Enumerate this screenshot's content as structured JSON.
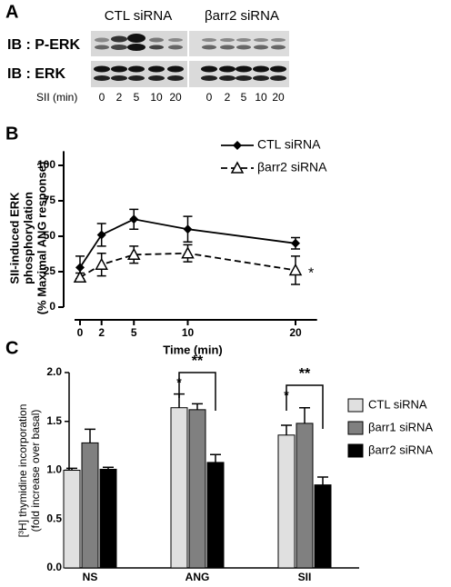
{
  "panel_labels": [
    "A",
    "B",
    "C"
  ],
  "blot": {
    "groups": [
      "CTL siRNA",
      "βarr2 siRNA"
    ],
    "rows": [
      "IB : P-ERK",
      "IB : ERK"
    ],
    "time_label": "SII (min)",
    "times": [
      "0",
      "2",
      "5",
      "10",
      "20",
      "0",
      "2",
      "5",
      "10",
      "20"
    ]
  },
  "chart_data": [
    {
      "type": "line",
      "x": [
        0,
        2,
        5,
        10,
        20
      ],
      "xlim": [
        0,
        22
      ],
      "xticks": [
        0,
        2,
        5,
        10,
        20
      ],
      "ylim": [
        0,
        110
      ],
      "yticks": [
        0,
        25,
        50,
        75,
        100
      ],
      "xlabel": "Time (min)",
      "ylabel": [
        "SII-induced ERK",
        "phosphorylation",
        "(% Maximal ANG response)"
      ],
      "legend": "upper right",
      "series": [
        {
          "name": "CTL siRNA",
          "color": "#000000",
          "marker": "diamond",
          "linestyle": "solid",
          "values": [
            28,
            51,
            62,
            55,
            45
          ],
          "errors": [
            8,
            8,
            7,
            9,
            4
          ]
        },
        {
          "name": "βarr2 siRNA",
          "color": "#000000",
          "marker": "triangle",
          "linestyle": "dashed",
          "values": [
            21,
            30,
            37,
            38,
            26
          ],
          "errors": [
            3,
            8,
            6,
            6,
            10
          ]
        }
      ],
      "annotations": [
        {
          "text": "*"
        }
      ]
    },
    {
      "type": "bar",
      "categories": [
        "NS",
        "ANG",
        "SII"
      ],
      "ylim": [
        0,
        2
      ],
      "yticks": [
        {
          "value": 0,
          "label": "0.0"
        },
        {
          "value": 0.5,
          "label": "0.5"
        },
        {
          "value": 1,
          "label": "1.0"
        },
        {
          "value": 1.5,
          "label": "1.5"
        },
        {
          "value": 2,
          "label": "2.0"
        }
      ],
      "ylabel": [
        "[³H] thymidine incorporation",
        "(fold increase over basal)"
      ],
      "legend": "right",
      "series": [
        {
          "name": "CTL siRNA",
          "color": "#e0e0e0",
          "values": [
            1.0,
            1.64,
            1.36
          ],
          "errors": [
            0.02,
            0.14,
            0.1
          ]
        },
        {
          "name": "βarr1 siRNA",
          "color": "#808080",
          "values": [
            1.28,
            1.62,
            1.48
          ],
          "errors": [
            0.14,
            0.06,
            0.16
          ]
        },
        {
          "name": "βarr2 siRNA",
          "color": "#000000",
          "values": [
            1.01,
            1.08,
            0.85
          ],
          "errors": [
            0.02,
            0.08,
            0.08
          ]
        }
      ],
      "annotations": [
        "*",
        "*",
        "**",
        "**"
      ]
    }
  ]
}
